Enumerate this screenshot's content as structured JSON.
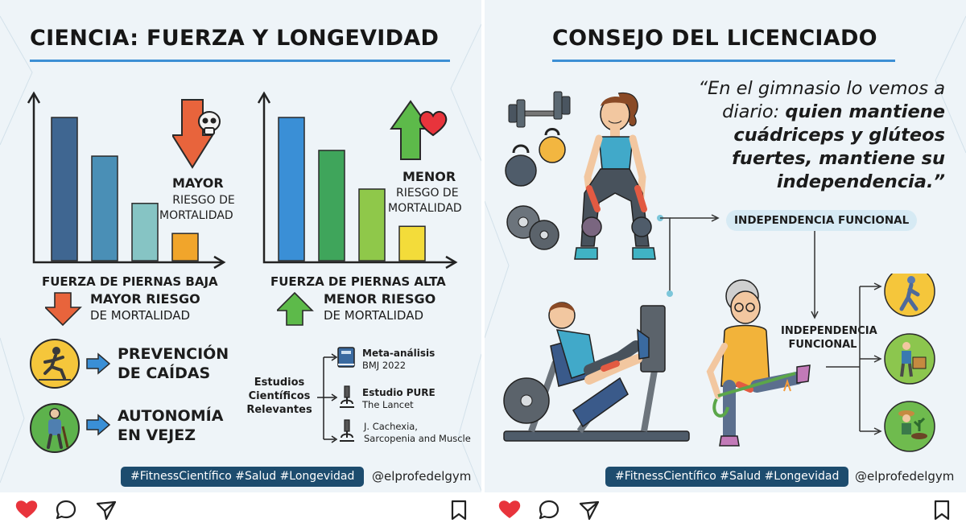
{
  "left": {
    "title": "CIENCIA: FUERZA Y LONGEVIDAD",
    "chart_low": {
      "caption": "FUERZA DE PIERNAS BAJA",
      "risk_bold": "MAYOR",
      "risk_line1": "RIESGO DE",
      "risk_line2": "MORTALIDAD",
      "bar_heights_rel": [
        1.0,
        0.73,
        0.4,
        0.19
      ],
      "bar_colors": [
        "#3f6691",
        "#4a8fb6",
        "#86c4c4",
        "#f1a52b"
      ]
    },
    "chart_high": {
      "caption": "FUERZA DE PIERNAS ALTA",
      "risk_bold": "MENOR",
      "risk_line1": "RIESGO DE",
      "risk_line2": "MORTALIDAD",
      "bar_heights_rel": [
        1.0,
        0.77,
        0.5,
        0.24
      ],
      "bar_colors": [
        "#3a8fd6",
        "#3fa55b",
        "#8fc84a",
        "#f3dc3a"
      ]
    },
    "mayor_riesgo": {
      "bold": "MAYOR RIESGO",
      "normal": "DE MORTALIDAD"
    },
    "menor_riesgo": {
      "bold": "MENOR RIESGO",
      "normal": "DE MORTALIDAD"
    },
    "benefit1": {
      "line1": "PREVENCIÓN",
      "line2": "DE CAÍDAS"
    },
    "benefit2": {
      "line1": "AUTONOMÍA",
      "line2": "EN VEJEZ"
    },
    "studies_label": {
      "line1": "Estudios",
      "line2": "Científicos",
      "line3": "Relevantes"
    },
    "studies": [
      {
        "bold": "Meta-análisis",
        "normal": "BMJ 2022"
      },
      {
        "bold": "Estudio PURE",
        "normal": "The Lancet"
      },
      {
        "bold": "",
        "normal": "J. Cachexia,",
        "normal2": "Sarcopenia and Muscle"
      }
    ],
    "hashtags": "#FitnessCientífico #Salud #Longevidad",
    "handle": "@elprofedelgym"
  },
  "right": {
    "title": "CONSEJO DEL LICENCIADO",
    "quote_intro": "“En el gimnasio lo vemos a diario: ",
    "quote_bold": "quien mantiene cuádriceps y glúteos fuertes, mantiene su independencia.”",
    "pill": "INDEPENDENCIA FUNCIONAL",
    "indep_line1": "INDEPENDENCIA",
    "indep_line2": "FUNCIONAL",
    "hashtags": "#FitnessCientífico #Salud #Longevidad",
    "handle": "@elprofedelgym"
  },
  "colors": {
    "heart": "#e8343c",
    "accent_line": "#3d8fd4",
    "tag_bg": "#1d4c6e",
    "arrow_red": "#e8643c",
    "arrow_green": "#5dba4a",
    "arrow_blue": "#3a8fd6"
  },
  "icons": {
    "heart": "heart-icon",
    "comment": "comment-icon",
    "share": "share-icon",
    "bookmark": "bookmark-icon"
  }
}
